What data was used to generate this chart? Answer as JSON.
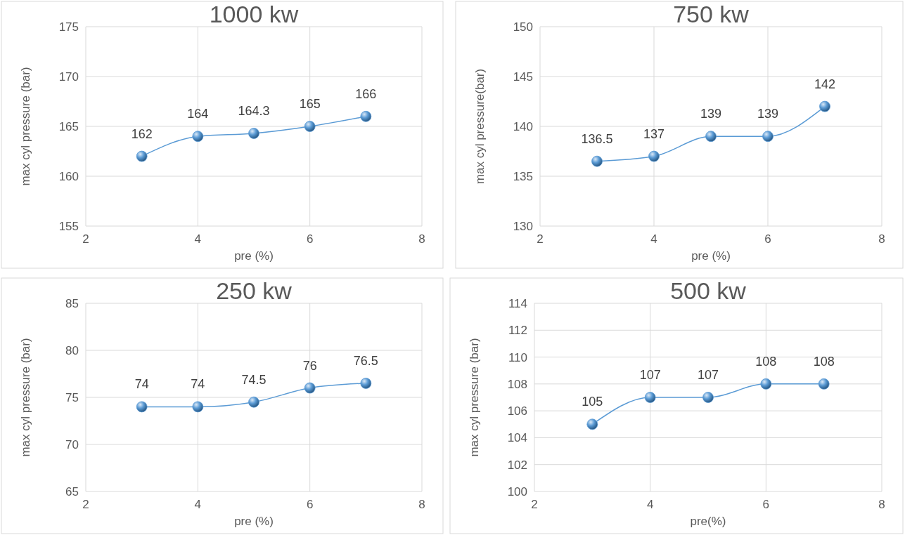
{
  "chart_data": [
    {
      "type": "line",
      "title": "1000 kw",
      "xlabel": "pre (%)",
      "ylabel": "max cyl pressure (bar)",
      "x": [
        3,
        4,
        5,
        6,
        7
      ],
      "series": [
        {
          "color": "#5b9bd5",
          "values": [
            162,
            164,
            164.3,
            165,
            166
          ]
        }
      ],
      "xlim": [
        2,
        8
      ],
      "xticks": [
        2,
        4,
        6,
        8
      ],
      "ylim": [
        155,
        175
      ],
      "yticks": [
        155,
        160,
        165,
        170,
        175
      ],
      "grid": true,
      "marker": "circle",
      "data_labels": true
    },
    {
      "type": "line",
      "title": "750 kw",
      "xlabel": "pre (%)",
      "ylabel": "max cyl pressure(bar)",
      "x": [
        3,
        4,
        5,
        6,
        7
      ],
      "series": [
        {
          "color": "#5b9bd5",
          "values": [
            136.5,
            137,
            139,
            139,
            142
          ]
        }
      ],
      "xlim": [
        2,
        8
      ],
      "xticks": [
        2,
        4,
        6,
        8
      ],
      "ylim": [
        130,
        150
      ],
      "yticks": [
        130,
        135,
        140,
        145,
        150
      ],
      "grid": true,
      "marker": "circle",
      "data_labels": true
    },
    {
      "type": "line",
      "title": "250 kw",
      "xlabel": "pre (%)",
      "ylabel": "max cyl pressure (bar)",
      "x": [
        3,
        4,
        5,
        6,
        7
      ],
      "series": [
        {
          "color": "#5b9bd5",
          "values": [
            74,
            74,
            74.5,
            76,
            76.5
          ]
        }
      ],
      "xlim": [
        2,
        8
      ],
      "xticks": [
        2,
        4,
        6,
        8
      ],
      "ylim": [
        65,
        85
      ],
      "yticks": [
        65,
        70,
        75,
        80,
        85
      ],
      "grid": true,
      "marker": "circle",
      "data_labels": true
    },
    {
      "type": "line",
      "title": "500 kw",
      "xlabel": "pre(%)",
      "ylabel": "max cyl pressure (bar)",
      "x": [
        3,
        4,
        5,
        6,
        7
      ],
      "series": [
        {
          "color": "#5b9bd5",
          "values": [
            105,
            107,
            107,
            108,
            108
          ]
        }
      ],
      "xlim": [
        2,
        8
      ],
      "xticks": [
        2,
        4,
        6,
        8
      ],
      "ylim": [
        100,
        114
      ],
      "yticks": [
        100,
        102,
        104,
        106,
        108,
        110,
        112,
        114
      ],
      "grid": true,
      "marker": "circle",
      "data_labels": true
    }
  ]
}
